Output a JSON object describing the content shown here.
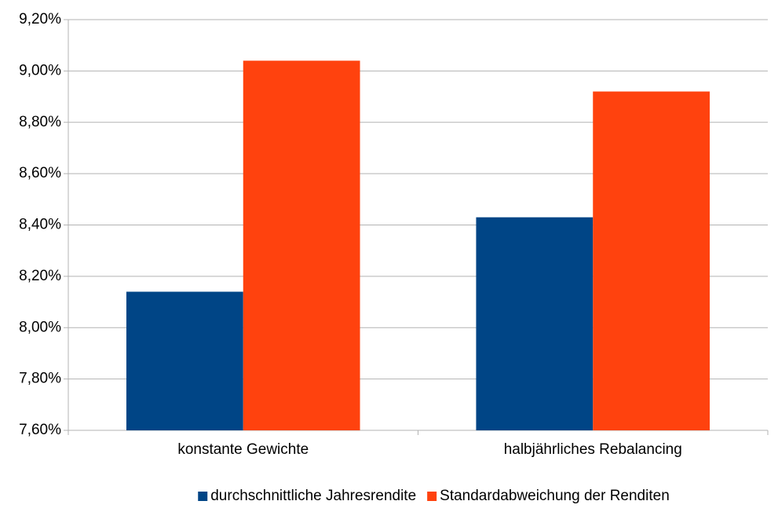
{
  "chart_data": {
    "type": "bar",
    "categories": [
      "konstante Gewichte",
      "halbjährliches Rebalancing"
    ],
    "series": [
      {
        "name": "durchschnittliche Jahresrendite",
        "color": "#004586",
        "values": [
          8.14,
          8.43
        ]
      },
      {
        "name": "Standardabweichung der Renditen",
        "color": "#ff420e",
        "values": [
          9.04,
          8.92
        ]
      }
    ],
    "ylim": [
      7.6,
      9.2
    ],
    "yticks": [
      {
        "value": 7.6,
        "label": "7,60%"
      },
      {
        "value": 7.8,
        "label": "7,80%"
      },
      {
        "value": 8.0,
        "label": "8,00%"
      },
      {
        "value": 8.2,
        "label": "8,20%"
      },
      {
        "value": 8.4,
        "label": "8,40%"
      },
      {
        "value": 8.6,
        "label": "8,60%"
      },
      {
        "value": 8.8,
        "label": "8,80%"
      },
      {
        "value": 9.0,
        "label": "9,00%"
      },
      {
        "value": 9.2,
        "label": "9,20%"
      }
    ],
    "grid": true,
    "legend": "bottom"
  }
}
